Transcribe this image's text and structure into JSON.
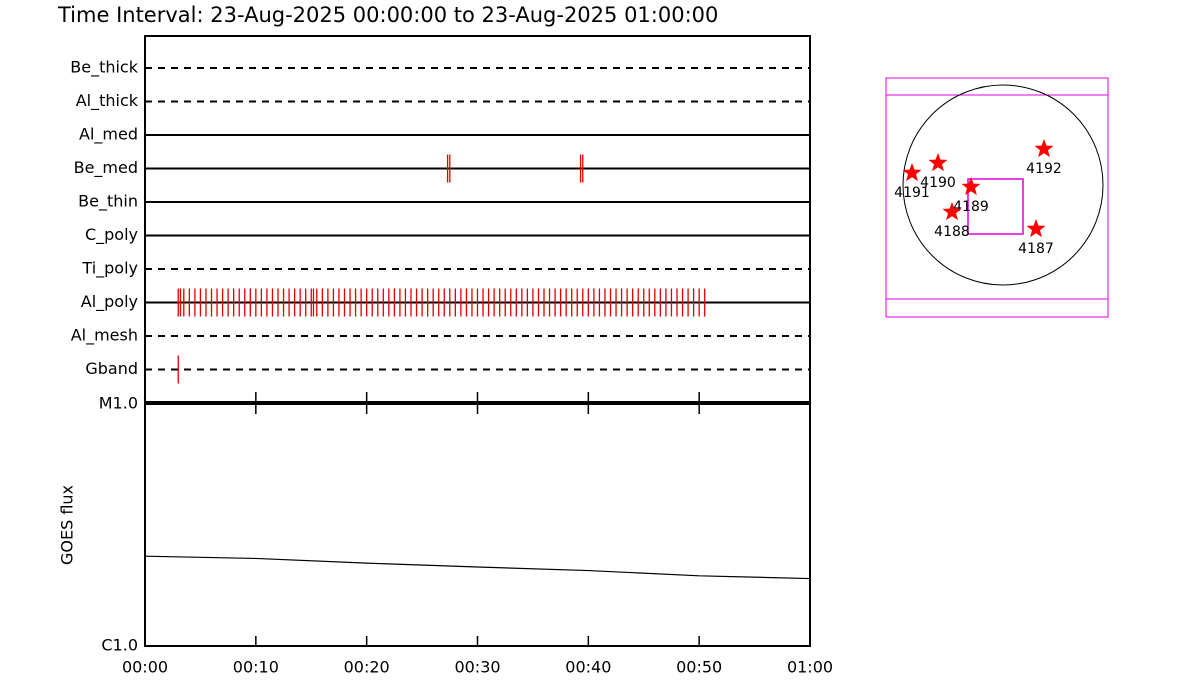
{
  "title": "Time Interval: 23-Aug-2025 00:00:00 to 23-Aug-2025 01:00:00",
  "chart_data": [
    {
      "type": "event-lanes",
      "xlim": [
        0,
        60
      ],
      "event_color": "#e00000",
      "lanes": [
        {
          "name": "Be_thick",
          "style": "dashed",
          "events": []
        },
        {
          "name": "Al_thick",
          "style": "dashed",
          "events": []
        },
        {
          "name": "Al_med",
          "style": "solid",
          "events": []
        },
        {
          "name": "Be_med",
          "style": "solid",
          "events": [
            27.3,
            27.5,
            39.3,
            39.5
          ]
        },
        {
          "name": "Be_thin",
          "style": "solid",
          "events": []
        },
        {
          "name": "C_poly",
          "style": "solid",
          "events": []
        },
        {
          "name": "Ti_poly",
          "style": "dashed",
          "events": []
        },
        {
          "name": "Al_poly",
          "style": "solid",
          "events": [
            3.0,
            3.2,
            3.5,
            4.0,
            4.5,
            5.0,
            5.5,
            6.0,
            6.5,
            7.0,
            7.5,
            8.0,
            8.5,
            9.0,
            9.5,
            10.0,
            10.5,
            11.0,
            11.5,
            12.0,
            12.5,
            13.0,
            13.5,
            14.0,
            14.5,
            15.0,
            15.2,
            15.5,
            16.0,
            16.5,
            17.0,
            17.5,
            18.0,
            18.5,
            19.0,
            19.5,
            20.0,
            20.5,
            21.0,
            21.5,
            22.0,
            22.5,
            23.0,
            23.5,
            24.0,
            24.5,
            25.0,
            25.5,
            26.0,
            26.5,
            27.0,
            27.5,
            28.0,
            28.5,
            29.0,
            29.5,
            30.0,
            30.5,
            31.0,
            31.5,
            32.0,
            32.5,
            33.0,
            33.5,
            34.0,
            34.5,
            35.0,
            35.5,
            36.0,
            36.5,
            37.0,
            37.5,
            38.0,
            38.5,
            39.0,
            39.5,
            40.0,
            40.5,
            41.0,
            41.5,
            42.0,
            42.5,
            43.0,
            43.5,
            44.0,
            44.5,
            45.0,
            45.5,
            46.0,
            46.5,
            47.0,
            47.5,
            48.0,
            48.5,
            49.0,
            49.5,
            50.0,
            50.5
          ]
        },
        {
          "name": "Al_mesh",
          "style": "dashed",
          "events": []
        },
        {
          "name": "Gband",
          "style": "solid-dashed",
          "events": [
            3.0
          ]
        }
      ]
    },
    {
      "type": "line",
      "y_label": "GOES flux",
      "log_y": true,
      "xlim": [
        0,
        60
      ],
      "xticks": [
        {
          "value": 0,
          "label": "00:00"
        },
        {
          "value": 10,
          "label": "00:10"
        },
        {
          "value": 20,
          "label": "00:20"
        },
        {
          "value": 30,
          "label": "00:30"
        },
        {
          "value": 40,
          "label": "00:40"
        },
        {
          "value": 50,
          "label": "00:50"
        },
        {
          "value": 60,
          "label": "01:00"
        }
      ],
      "ylim": [
        1e-06,
        1e-05
      ],
      "yticks": [
        {
          "value": 1e-06,
          "label": "C1.0"
        },
        {
          "value": 1e-05,
          "label": "M1.0"
        }
      ],
      "x": [
        0,
        10,
        20,
        30,
        40,
        50,
        60
      ],
      "values": [
        2.35e-06,
        2.3e-06,
        2.2e-06,
        2.12e-06,
        2.05e-06,
        1.95e-06,
        1.9e-06
      ],
      "color": "#000000"
    },
    {
      "type": "sun-map",
      "regions": [
        "4191",
        "4190",
        "4189",
        "4188",
        "4187",
        "4192"
      ],
      "marker_color": "#ff0000",
      "box_color": "#e000e0"
    }
  ]
}
